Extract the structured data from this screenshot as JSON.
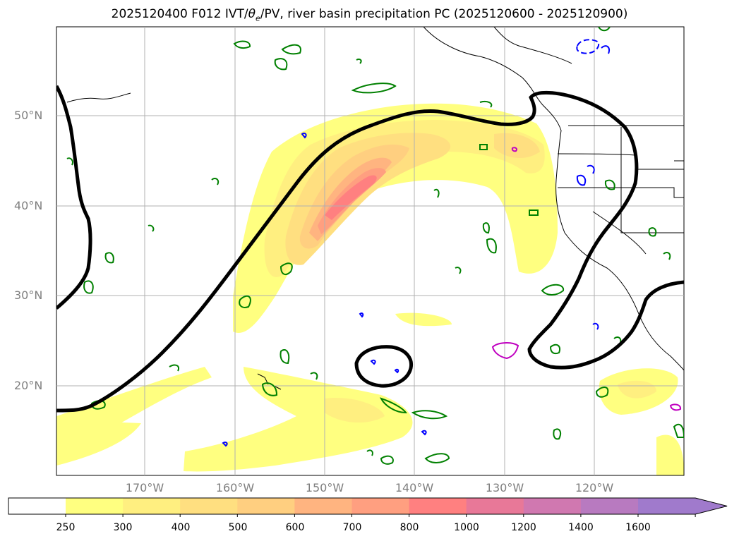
{
  "title": "2025120400 F012 IVT/θe/PV, river basin precipitation PC (2025120600 - 2025120900)",
  "title_parts": {
    "prefix": "2025120400 F012 IVT/",
    "theta": "θ",
    "theta_sub": "e",
    "suffix": "/PV, river basin precipitation PC (2025120600 - 2025120900)"
  },
  "map": {
    "lat_labels": [
      "50°N",
      "40°N",
      "30°N",
      "20°N"
    ],
    "lon_labels": [
      "170°W",
      "160°W",
      "150°W",
      "140°W",
      "130°W",
      "120°W"
    ],
    "contour_colors": {
      "precip_percentile": "#000000",
      "pv_green": "#008000",
      "pv_blue": "#0000ff",
      "theta_magenta": "#c000c0"
    }
  },
  "colorbar": {
    "levels": [
      "250",
      "300",
      "400",
      "500",
      "600",
      "700",
      "800",
      "1000",
      "1200",
      "1400",
      "1600"
    ],
    "colors": [
      "#ffff80",
      "#ffef80",
      "#ffdf80",
      "#ffcf80",
      "#ffb480",
      "#ff9f80",
      "#ff8080",
      "#e87898",
      "#d078b0",
      "#b87ac0",
      "#a07acc"
    ],
    "extend": "max"
  }
}
